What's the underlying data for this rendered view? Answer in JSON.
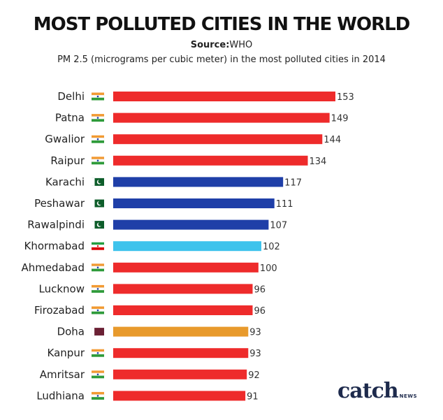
{
  "title": "MOST POLLUTED CITIES IN THE WORLD",
  "source_label": "Source:",
  "source_value": "WHO",
  "subtitle": "PM 2.5 (micrograms per cubic meter) in the most polluted cities in 2014",
  "logo": {
    "main": "catch",
    "sub": "NEWS"
  },
  "colors": {
    "india": "#ee2b2b",
    "pakistan": "#1f3fa8",
    "iran": "#3ec3ec",
    "qatar": "#e89a2c"
  },
  "chart_data": {
    "type": "bar",
    "orientation": "horizontal",
    "title": "MOST POLLUTED CITIES IN THE WORLD",
    "subtitle": "PM 2.5 (micrograms per cubic meter) in the most polluted cities in 2014",
    "xlabel": "",
    "ylabel": "",
    "xlim": [
      0,
      153
    ],
    "grid": false,
    "categories": [
      "Delhi",
      "Patna",
      "Gwalior",
      "Raipur",
      "Karachi",
      "Peshawar",
      "Rawalpindi",
      "Khormabad",
      "Ahmedabad",
      "Lucknow",
      "Firozabad",
      "Doha",
      "Kanpur",
      "Amritsar",
      "Ludhiana"
    ],
    "values": [
      153,
      149,
      144,
      134,
      117,
      111,
      107,
      102,
      100,
      96,
      96,
      93,
      93,
      92,
      91
    ],
    "flags": [
      "india",
      "india",
      "india",
      "india",
      "pakistan",
      "pakistan",
      "pakistan",
      "iran",
      "india",
      "india",
      "india",
      "qatar",
      "india",
      "india",
      "india"
    ]
  }
}
